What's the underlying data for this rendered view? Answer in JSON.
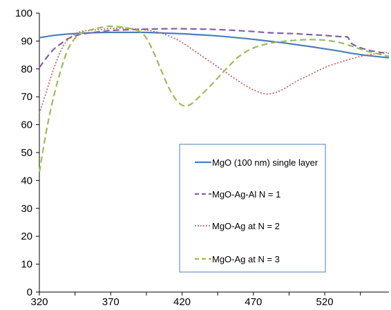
{
  "chart_data": {
    "type": "line",
    "title": "",
    "xlabel": "",
    "ylabel": "",
    "xlim": [
      320,
      565
    ],
    "ylim": [
      0,
      100
    ],
    "x_ticks": [
      320,
      370,
      420,
      470,
      520
    ],
    "y_ticks": [
      0,
      10,
      20,
      30,
      40,
      50,
      60,
      70,
      80,
      90,
      100
    ],
    "grid": false,
    "legend_position": "bottom-right",
    "series": [
      {
        "name": "MgO (100 nm) single layer",
        "color": "#4a7ebb",
        "style": "solid",
        "points": [
          [
            320,
            91.2
          ],
          [
            330,
            92.0
          ],
          [
            340,
            92.5
          ],
          [
            350,
            92.8
          ],
          [
            360,
            93.0
          ],
          [
            370,
            93.1
          ],
          [
            380,
            93.1
          ],
          [
            390,
            93.1
          ],
          [
            400,
            93.0
          ],
          [
            410,
            92.8
          ],
          [
            420,
            92.6
          ],
          [
            430,
            92.3
          ],
          [
            440,
            92.0
          ],
          [
            450,
            91.6
          ],
          [
            460,
            91.1
          ],
          [
            470,
            90.6
          ],
          [
            480,
            90.0
          ],
          [
            490,
            89.4
          ],
          [
            500,
            88.7
          ],
          [
            510,
            88.0
          ],
          [
            520,
            87.2
          ],
          [
            530,
            86.4
          ],
          [
            540,
            85.5
          ],
          [
            550,
            84.8
          ],
          [
            565,
            84.0
          ]
        ]
      },
      {
        "name": "MgO-Ag-Al N = 1",
        "color": "#7f5fa6",
        "style": "dash",
        "points": [
          [
            320,
            80.5
          ],
          [
            325,
            84.0
          ],
          [
            330,
            87.0
          ],
          [
            335,
            89.0
          ],
          [
            340,
            90.8
          ],
          [
            345,
            91.8
          ],
          [
            350,
            92.5
          ],
          [
            360,
            93.2
          ],
          [
            370,
            93.8
          ],
          [
            380,
            94.0
          ],
          [
            390,
            94.2
          ],
          [
            400,
            94.3
          ],
          [
            410,
            94.4
          ],
          [
            420,
            94.4
          ],
          [
            430,
            94.3
          ],
          [
            440,
            94.2
          ],
          [
            450,
            94.0
          ],
          [
            460,
            93.7
          ],
          [
            470,
            93.4
          ],
          [
            480,
            93.0
          ],
          [
            490,
            92.8
          ],
          [
            500,
            92.6
          ],
          [
            510,
            92.3
          ],
          [
            520,
            92.0
          ],
          [
            530,
            91.6
          ],
          [
            536,
            91.4
          ],
          [
            538,
            89.5
          ],
          [
            542,
            88.2
          ],
          [
            550,
            86.8
          ],
          [
            558,
            86.0
          ],
          [
            565,
            85.5
          ]
        ]
      },
      {
        "name": "MgO-Ag at N = 2",
        "color": "#c0504d",
        "style": "dot",
        "points": [
          [
            320,
            64.0
          ],
          [
            325,
            72.0
          ],
          [
            330,
            80.0
          ],
          [
            335,
            86.5
          ],
          [
            340,
            90.5
          ],
          [
            345,
            92.5
          ],
          [
            350,
            93.5
          ],
          [
            360,
            94.0
          ],
          [
            370,
            94.5
          ],
          [
            380,
            94.6
          ],
          [
            390,
            94.2
          ],
          [
            400,
            93.5
          ],
          [
            410,
            92.0
          ],
          [
            420,
            89.5
          ],
          [
            430,
            86.0
          ],
          [
            440,
            82.5
          ],
          [
            450,
            79.0
          ],
          [
            460,
            75.5
          ],
          [
            470,
            72.5
          ],
          [
            480,
            71.0
          ],
          [
            490,
            72.5
          ],
          [
            500,
            75.5
          ],
          [
            510,
            78.0
          ],
          [
            520,
            80.5
          ],
          [
            530,
            82.3
          ],
          [
            540,
            83.8
          ],
          [
            550,
            85.0
          ],
          [
            565,
            86.0
          ]
        ]
      },
      {
        "name": "MgO-Ag at N = 3",
        "color": "#9bbb59",
        "style": "dash",
        "points": [
          [
            320,
            43.0
          ],
          [
            325,
            58.0
          ],
          [
            330,
            70.0
          ],
          [
            335,
            79.5
          ],
          [
            340,
            87.0
          ],
          [
            345,
            91.0
          ],
          [
            350,
            93.0
          ],
          [
            360,
            94.5
          ],
          [
            370,
            95.3
          ],
          [
            380,
            94.8
          ],
          [
            390,
            93.5
          ],
          [
            395,
            91.0
          ],
          [
            400,
            86.0
          ],
          [
            405,
            80.0
          ],
          [
            410,
            74.0
          ],
          [
            415,
            69.5
          ],
          [
            420,
            67.0
          ],
          [
            425,
            67.0
          ],
          [
            430,
            69.0
          ],
          [
            440,
            74.0
          ],
          [
            450,
            79.5
          ],
          [
            460,
            84.5
          ],
          [
            470,
            87.5
          ],
          [
            480,
            89.0
          ],
          [
            490,
            89.8
          ],
          [
            500,
            90.3
          ],
          [
            510,
            90.5
          ],
          [
            520,
            90.3
          ],
          [
            530,
            89.5
          ],
          [
            540,
            88.0
          ],
          [
            550,
            86.3
          ],
          [
            565,
            84.5
          ]
        ]
      }
    ]
  }
}
